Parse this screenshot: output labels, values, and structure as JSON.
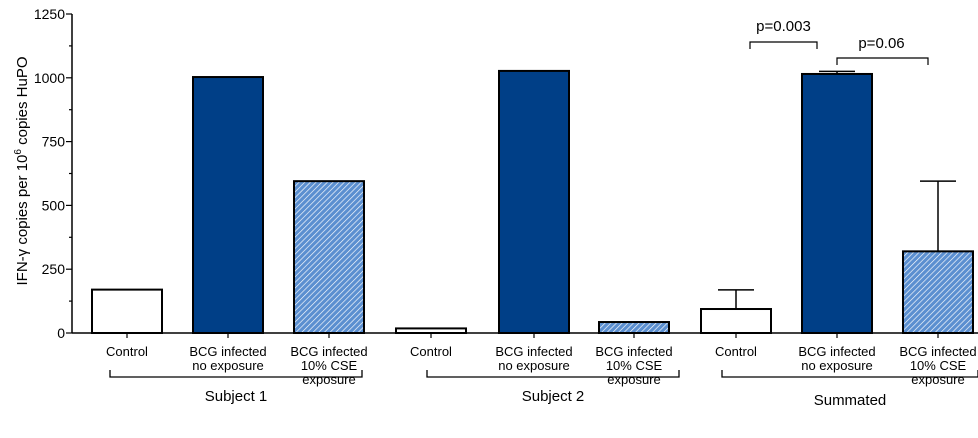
{
  "chart_data": {
    "type": "bar",
    "ylabel": {
      "prefix": "IFN-γ copies per 10",
      "superscript": "6",
      "suffix": " copies HuPO"
    },
    "ylim": [
      0,
      1250
    ],
    "yticks": [
      {
        "value": 0,
        "label": "0"
      },
      {
        "value": 250,
        "label": "250"
      },
      {
        "value": 500,
        "label": "500"
      },
      {
        "value": 750,
        "label": "750"
      },
      {
        "value": 1000,
        "label": "1000"
      },
      {
        "value": 1250,
        "label": "1250"
      }
    ],
    "fills": {
      "Control": "#ffffff",
      "BCG infected no exposure": "#003f87",
      "BCG infected 10% CSE exposure": "#5b8fd0"
    },
    "groups": [
      {
        "name": "Subject 1",
        "bars": [
          {
            "category": "Control",
            "label_lines": [
              "Control"
            ],
            "value": 170
          },
          {
            "category": "BCG infected no exposure",
            "label_lines": [
              "BCG infected",
              "no exposure"
            ],
            "value": 1003
          },
          {
            "category": "BCG infected 10% CSE exposure",
            "label_lines": [
              "BCG infected",
              "10% CSE",
              "exposure"
            ],
            "value": 595
          }
        ]
      },
      {
        "name": "Subject 2",
        "bars": [
          {
            "category": "Control",
            "label_lines": [
              "Control"
            ],
            "value": 18
          },
          {
            "category": "BCG infected no exposure",
            "label_lines": [
              "BCG infected",
              "no exposure"
            ],
            "value": 1027
          },
          {
            "category": "BCG infected 10% CSE exposure",
            "label_lines": [
              "BCG infected",
              "10% CSE",
              "exposure"
            ],
            "value": 43
          }
        ]
      },
      {
        "name": "Summated",
        "bars": [
          {
            "category": "Control",
            "label_lines": [
              "Control"
            ],
            "value": 94,
            "error": 75
          },
          {
            "category": "BCG infected no exposure",
            "label_lines": [
              "BCG infected",
              "no exposure"
            ],
            "value": 1015,
            "error": 10
          },
          {
            "category": "BCG infected 10% CSE exposure",
            "label_lines": [
              "BCG infected",
              "10% CSE",
              "exposure"
            ],
            "value": 320,
            "error": 275
          }
        ]
      }
    ],
    "significance": [
      {
        "label": "p=0.003",
        "from_bar": 6,
        "to_bar": 7
      },
      {
        "label": "p=0.06",
        "from_bar": 7,
        "to_bar": 8
      }
    ]
  }
}
